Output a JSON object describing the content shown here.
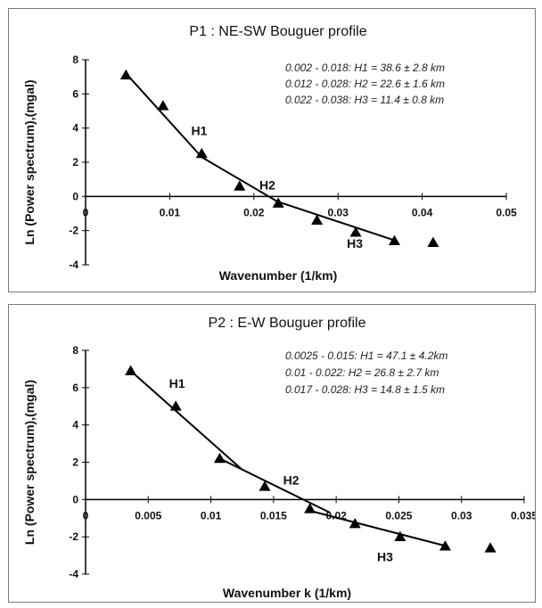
{
  "chart_data": [
    {
      "type": "scatter",
      "title": "P1 : NE-SW Bouguer profile",
      "xlabel": "Wavenumber (1/km)",
      "ylabel": "Ln (Power spectrum),(mgal)",
      "xlim": [
        0,
        0.05
      ],
      "ylim": [
        -4,
        8
      ],
      "x_ticks": [
        "0",
        "0.01",
        "0.02",
        "0.03",
        "0.04",
        "0.05"
      ],
      "y_ticks": [
        "8",
        "6",
        "4",
        "2",
        "0",
        "-2",
        "-4"
      ],
      "points": [
        {
          "x": 0.0048,
          "y": 7.1
        },
        {
          "x": 0.0092,
          "y": 5.3
        },
        {
          "x": 0.0138,
          "y": 2.5
        },
        {
          "x": 0.0183,
          "y": 0.6
        },
        {
          "x": 0.0229,
          "y": -0.4
        },
        {
          "x": 0.0275,
          "y": -1.4
        },
        {
          "x": 0.0321,
          "y": -2.1
        },
        {
          "x": 0.0367,
          "y": -2.6
        },
        {
          "x": 0.0413,
          "y": -2.7
        }
      ],
      "fit_lines": [
        {
          "x": [
            0.0048,
            0.0138
          ],
          "y": [
            7.2,
            2.3
          ]
        },
        {
          "x": [
            0.0138,
            0.0228
          ],
          "y": [
            2.3,
            -0.3
          ]
        },
        {
          "x": [
            0.0228,
            0.0369
          ],
          "y": [
            -0.3,
            -2.6
          ]
        }
      ],
      "segment_labels": [
        {
          "text": "H1",
          "x": 0.0135,
          "y": 3.6
        },
        {
          "text": "H2",
          "x": 0.0216,
          "y": 0.4
        },
        {
          "text": "H3",
          "x": 0.032,
          "y": -3.0
        }
      ],
      "annotations": [
        "0.002 - 0.018: H1 = 38.6 ± 2.8 km",
        "0.012 - 0.028: H2 = 22.6 ± 1.6 km",
        "0.022 - 0.038: H3 = 11.4 ± 0.8 km"
      ]
    },
    {
      "type": "scatter",
      "title": "P2 : E-W Bouguer profile",
      "xlabel": "Wavenumber k (1/km)",
      "ylabel": "Ln (Power spectrum),(mgal)",
      "xlim": [
        0,
        0.035
      ],
      "ylim": [
        -4,
        8
      ],
      "x_ticks": [
        "0",
        "0.005",
        "0.01",
        "0.015",
        "0.02",
        "0.025",
        "0.03",
        "0.035"
      ],
      "y_ticks": [
        "8",
        "6",
        "4",
        "2",
        "0",
        "-2",
        "-4"
      ],
      "points": [
        {
          "x": 0.0036,
          "y": 6.9
        },
        {
          "x": 0.0072,
          "y": 5.0
        },
        {
          "x": 0.0107,
          "y": 2.2
        },
        {
          "x": 0.0143,
          "y": 0.7
        },
        {
          "x": 0.0179,
          "y": -0.5
        },
        {
          "x": 0.0215,
          "y": -1.3
        },
        {
          "x": 0.0251,
          "y": -2.0
        },
        {
          "x": 0.0287,
          "y": -2.5
        },
        {
          "x": 0.0323,
          "y": -2.6
        }
      ],
      "fit_lines": [
        {
          "x": [
            0.0036,
            0.0125
          ],
          "y": [
            6.9,
            1.6
          ]
        },
        {
          "x": [
            0.0107,
            0.0195
          ],
          "y": [
            2.2,
            -0.7
          ]
        },
        {
          "x": [
            0.0179,
            0.0288
          ],
          "y": [
            -0.6,
            -2.5
          ]
        }
      ],
      "segment_labels": [
        {
          "text": "H1",
          "x": 0.0073,
          "y": 6.0
        },
        {
          "text": "H2",
          "x": 0.0164,
          "y": 0.8
        },
        {
          "text": "H3",
          "x": 0.0239,
          "y": -3.3
        }
      ],
      "annotations": [
        "0.0025 - 0.015: H1 = 47.1 ± 4.2km",
        "0.01 - 0.022: H2 = 26.8 ± 2.7 km",
        "0.017 - 0.028: H3 = 14.8 ± 1.5 km"
      ]
    }
  ]
}
